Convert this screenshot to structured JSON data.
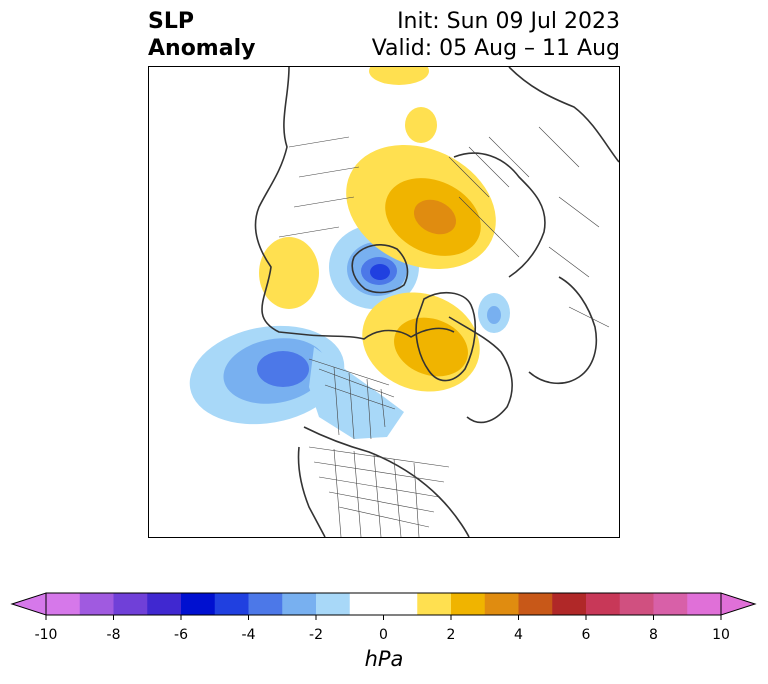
{
  "header": {
    "title_left": "SLP\nAnomaly",
    "init_text": "Init: Sun 09 Jul 2023",
    "valid_text": "Valid: 05 Aug – 11 Aug"
  },
  "colorbar": {
    "unit_label": "hPa",
    "ticks": [
      "-10",
      "-8",
      "-6",
      "-4",
      "-2",
      "0",
      "2",
      "4",
      "6",
      "8",
      "10"
    ],
    "colors": [
      "#d678ea",
      "#a05ae0",
      "#7040d8",
      "#4028d0",
      "#0010d0",
      "#2040e0",
      "#4c78e8",
      "#78b0f0",
      "#a8d8f8",
      "#ffffff",
      "#ffffff",
      "#ffe050",
      "#f0b400",
      "#e08c10",
      "#c85818",
      "#b02828",
      "#c83858",
      "#d05080",
      "#d860a8",
      "#e070d8"
    ]
  },
  "anomalies": [
    {
      "name": "alaska-low",
      "sign": "negative",
      "peak_hpa": -4.5
    },
    {
      "name": "hudson-bay-low",
      "sign": "negative",
      "peak_hpa": -5.5
    },
    {
      "name": "norwegian-sea-low",
      "sign": "negative",
      "peak_hpa": -2
    },
    {
      "name": "canada-low-band",
      "sign": "negative",
      "peak_hpa": -2
    },
    {
      "name": "greenland-high",
      "sign": "positive",
      "peak_hpa": 3.5
    },
    {
      "name": "siberia-high",
      "sign": "positive",
      "peak_hpa": 3.5
    },
    {
      "name": "scandinavia-high",
      "sign": "positive",
      "peak_hpa": 2
    },
    {
      "name": "east-siberia-high",
      "sign": "positive",
      "peak_hpa": 1.5
    }
  ]
}
